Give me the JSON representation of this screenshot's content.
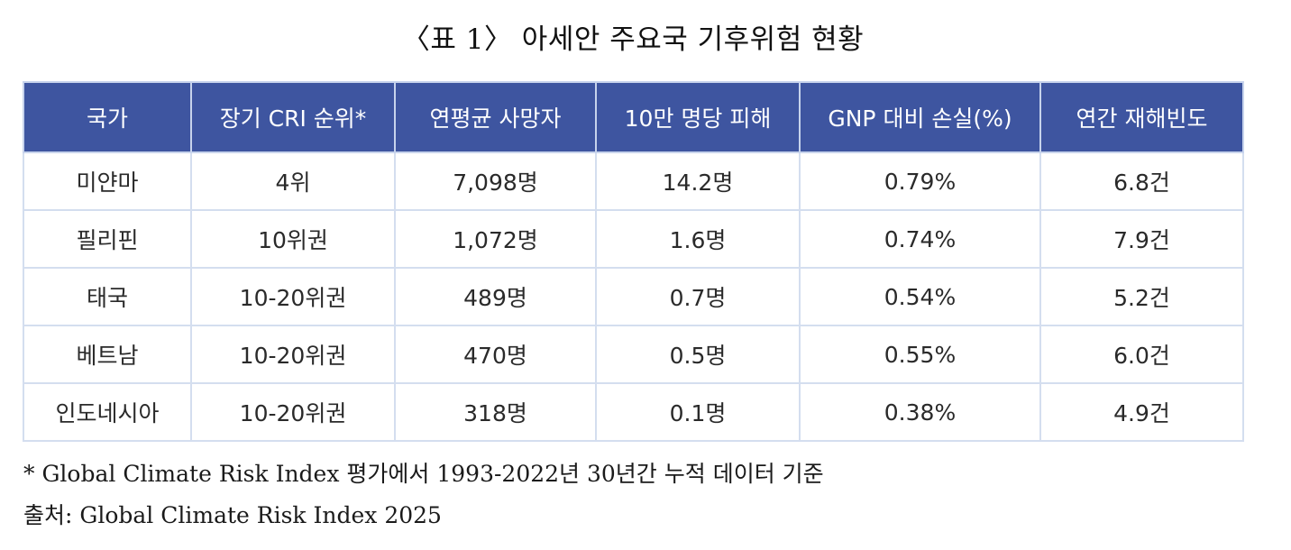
{
  "title": "〈표 1〉 아세안 주요국 기후위험 현황",
  "table": {
    "headers": [
      "국가",
      "장기 CRI 순위*",
      "연평균 사망자",
      "10만 명당 피해",
      "GNP 대비 손실(%)",
      "연간 재해빈도"
    ],
    "rows": [
      [
        "미얀마",
        "4위",
        "7,098명",
        "14.2명",
        "0.79%",
        "6.8건"
      ],
      [
        "필리핀",
        "10위권",
        "1,072명",
        "1.6명",
        "0.74%",
        "7.9건"
      ],
      [
        "태국",
        "10-20위권",
        "489명",
        "0.7명",
        "0.54%",
        "5.2건"
      ],
      [
        "베트남",
        "10-20위권",
        "470명",
        "0.5명",
        "0.55%",
        "6.0건"
      ],
      [
        "인도네시아",
        "10-20위권",
        "318명",
        "0.1명",
        "0.38%",
        "4.9건"
      ]
    ]
  },
  "notes": {
    "footnote": "* Global Climate Risk Index 평가에서 1993-2022년 30년간 누적 데이터 기준",
    "source": "출처: Global Climate Risk Index 2025"
  },
  "colors": {
    "header_bg": "#3e55a0",
    "header_text": "#ffffff",
    "grid": "#d4deef"
  }
}
